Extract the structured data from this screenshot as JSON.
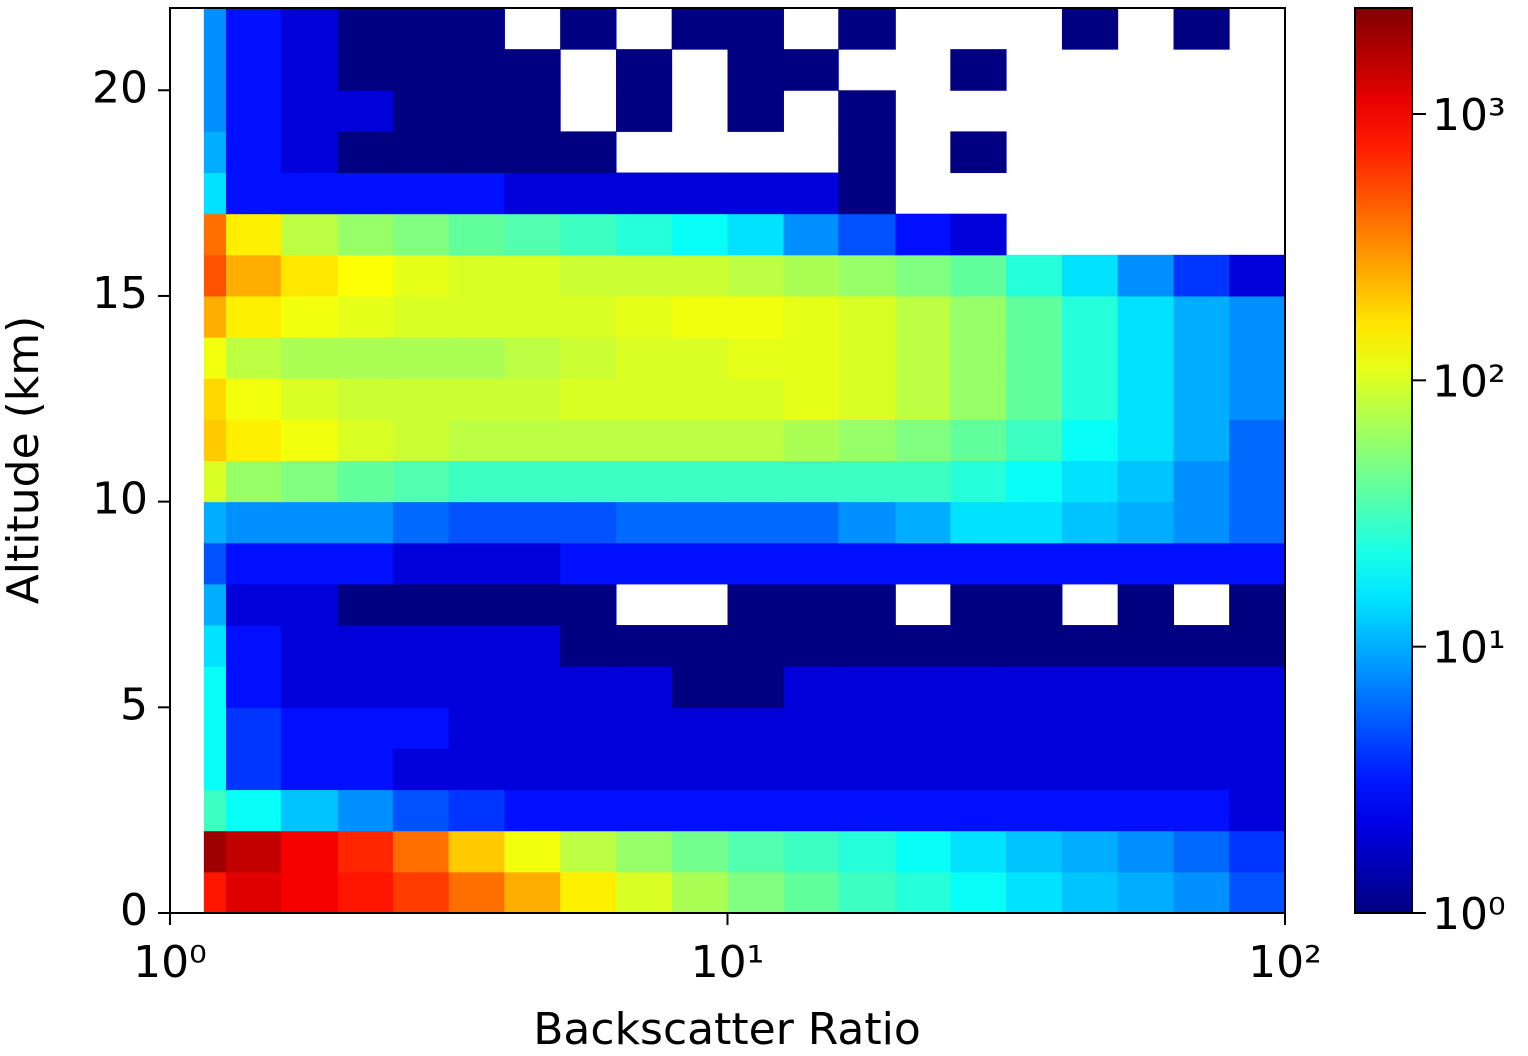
{
  "chart_data": {
    "type": "heatmap",
    "xlabel": "Backscatter Ratio",
    "ylabel": "Altitude (km)",
    "xscale": "log",
    "colormap": "jet",
    "xlim": [
      1,
      100
    ],
    "ylim": [
      0,
      22
    ],
    "xticks": [
      {
        "value": 1,
        "label": "10⁰"
      },
      {
        "value": 10,
        "label": "10¹"
      },
      {
        "value": 100,
        "label": "10²"
      }
    ],
    "yticks": [
      0,
      5,
      10,
      15,
      20
    ],
    "xbins": [
      1.15,
      1.26,
      1.58,
      2,
      2.51,
      3.16,
      3.98,
      5.01,
      6.31,
      7.94,
      10,
      12.6,
      15.8,
      20,
      25.1,
      31.6,
      39.8,
      50.1,
      63.1,
      79.4,
      100
    ],
    "ybins": [
      0,
      1,
      2,
      3,
      4,
      5,
      6,
      7,
      8,
      9,
      10,
      11,
      12,
      13,
      14,
      15,
      16,
      17,
      18,
      19,
      20,
      21,
      22
    ],
    "z": [
      [
        800,
        1200,
        1000,
        800,
        600,
        400,
        250,
        150,
        100,
        70,
        50,
        40,
        30,
        25,
        20,
        15,
        12,
        10,
        8,
        5
      ],
      [
        2000,
        1500,
        1000,
        700,
        400,
        200,
        120,
        80,
        60,
        45,
        35,
        30,
        25,
        20,
        15,
        12,
        10,
        8,
        6,
        4
      ],
      [
        30,
        20,
        12,
        8,
        5,
        4,
        3,
        3,
        3,
        3,
        3,
        3,
        3,
        3,
        3,
        3,
        3,
        3,
        3,
        2
      ],
      [
        20,
        4,
        3,
        3,
        2,
        2,
        2,
        2,
        2,
        2,
        2,
        2,
        2,
        2,
        2,
        2,
        2,
        2,
        2,
        2
      ],
      [
        20,
        4,
        3,
        3,
        3,
        2,
        2,
        2,
        2,
        2,
        2,
        2,
        2,
        2,
        2,
        2,
        2,
        2,
        2,
        2
      ],
      [
        20,
        3,
        2,
        2,
        2,
        2,
        2,
        2,
        2,
        1,
        1,
        2,
        2,
        2,
        2,
        2,
        2,
        2,
        2,
        2
      ],
      [
        15,
        3,
        2,
        2,
        2,
        2,
        2,
        1,
        1,
        1,
        1,
        1,
        1,
        1,
        1,
        1,
        1,
        1,
        1,
        1
      ],
      [
        10,
        2,
        2,
        1,
        1,
        1,
        1,
        1,
        null,
        null,
        1,
        1,
        1,
        null,
        1,
        1,
        null,
        1,
        null,
        1
      ],
      [
        5,
        3,
        3,
        3,
        2,
        2,
        2,
        3,
        3,
        3,
        3,
        3,
        3,
        3,
        3,
        3,
        3,
        3,
        3,
        3
      ],
      [
        10,
        8,
        8,
        8,
        6,
        5,
        5,
        5,
        6,
        6,
        6,
        6,
        8,
        10,
        15,
        15,
        12,
        10,
        8,
        6
      ],
      [
        100,
        60,
        50,
        40,
        35,
        30,
        30,
        30,
        30,
        30,
        30,
        30,
        30,
        30,
        25,
        20,
        15,
        12,
        8,
        6
      ],
      [
        200,
        150,
        120,
        100,
        90,
        80,
        80,
        80,
        80,
        80,
        80,
        70,
        60,
        50,
        40,
        30,
        20,
        15,
        10,
        6
      ],
      [
        180,
        120,
        100,
        90,
        90,
        90,
        90,
        100,
        100,
        100,
        100,
        110,
        100,
        80,
        60,
        40,
        25,
        15,
        10,
        8
      ],
      [
        120,
        80,
        70,
        70,
        70,
        70,
        80,
        90,
        100,
        100,
        110,
        110,
        100,
        80,
        60,
        40,
        25,
        15,
        10,
        8
      ],
      [
        250,
        150,
        120,
        110,
        100,
        100,
        100,
        100,
        110,
        120,
        120,
        110,
        100,
        80,
        60,
        40,
        25,
        15,
        10,
        8
      ],
      [
        500,
        250,
        160,
        130,
        110,
        100,
        100,
        90,
        90,
        90,
        80,
        70,
        60,
        50,
        40,
        25,
        15,
        8,
        4,
        2
      ],
      [
        400,
        150,
        80,
        60,
        50,
        40,
        35,
        30,
        25,
        20,
        15,
        8,
        5,
        3,
        2,
        null,
        null,
        null,
        null,
        null
      ],
      [
        15,
        3,
        3,
        3,
        3,
        3,
        2,
        2,
        2,
        2,
        2,
        2,
        1,
        null,
        null,
        null,
        null,
        null,
        null,
        null
      ],
      [
        10,
        3,
        2,
        1,
        1,
        1,
        1,
        1,
        null,
        null,
        null,
        null,
        1,
        null,
        1,
        null,
        null,
        null,
        null,
        null
      ],
      [
        8,
        3,
        2,
        2,
        1,
        1,
        1,
        null,
        1,
        null,
        1,
        null,
        1,
        null,
        null,
        null,
        null,
        null,
        null,
        null
      ],
      [
        8,
        3,
        2,
        1,
        1,
        1,
        1,
        null,
        1,
        null,
        1,
        1,
        null,
        null,
        1,
        null,
        null,
        null,
        null,
        null
      ],
      [
        8,
        3,
        2,
        1,
        1,
        1,
        null,
        1,
        null,
        1,
        1,
        null,
        1,
        null,
        null,
        null,
        1,
        null,
        1,
        null
      ]
    ],
    "colorbar": {
      "scale": "log",
      "lim": [
        1,
        2500
      ],
      "ticks": [
        {
          "value": 1,
          "label": "10⁰"
        },
        {
          "value": 10,
          "label": "10¹"
        },
        {
          "value": 100,
          "label": "10²"
        },
        {
          "value": 1000,
          "label": "10³"
        }
      ]
    }
  }
}
